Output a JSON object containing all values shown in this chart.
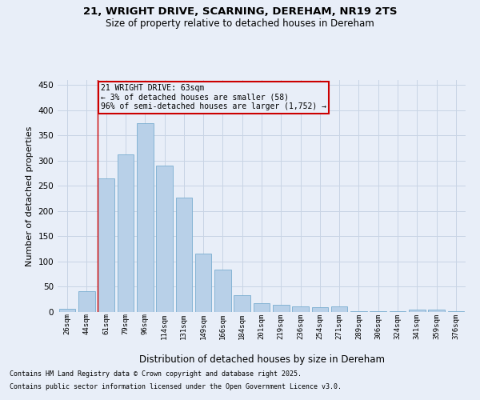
{
  "title_line1": "21, WRIGHT DRIVE, SCARNING, DEREHAM, NR19 2TS",
  "title_line2": "Size of property relative to detached houses in Dereham",
  "xlabel": "Distribution of detached houses by size in Dereham",
  "ylabel": "Number of detached properties",
  "categories": [
    "26sqm",
    "44sqm",
    "61sqm",
    "79sqm",
    "96sqm",
    "114sqm",
    "131sqm",
    "149sqm",
    "166sqm",
    "184sqm",
    "201sqm",
    "219sqm",
    "236sqm",
    "254sqm",
    "271sqm",
    "289sqm",
    "306sqm",
    "324sqm",
    "341sqm",
    "359sqm",
    "376sqm"
  ],
  "values": [
    7,
    42,
    265,
    312,
    375,
    290,
    227,
    116,
    84,
    34,
    18,
    15,
    11,
    10,
    11,
    2,
    2,
    1,
    5,
    4,
    1
  ],
  "bar_color": "#b8d0e8",
  "bar_edge_color": "#7aaed0",
  "grid_color": "#c8d4e4",
  "background_color": "#e8eef8",
  "vline_color": "#cc0000",
  "vline_index": 2,
  "annotation_text": "21 WRIGHT DRIVE: 63sqm\n← 3% of detached houses are smaller (58)\n96% of semi-detached houses are larger (1,752) →",
  "annotation_box_color": "#cc0000",
  "footer_line1": "Contains HM Land Registry data © Crown copyright and database right 2025.",
  "footer_line2": "Contains public sector information licensed under the Open Government Licence v3.0.",
  "ylim": [
    0,
    460
  ],
  "yticks": [
    0,
    50,
    100,
    150,
    200,
    250,
    300,
    350,
    400,
    450
  ]
}
